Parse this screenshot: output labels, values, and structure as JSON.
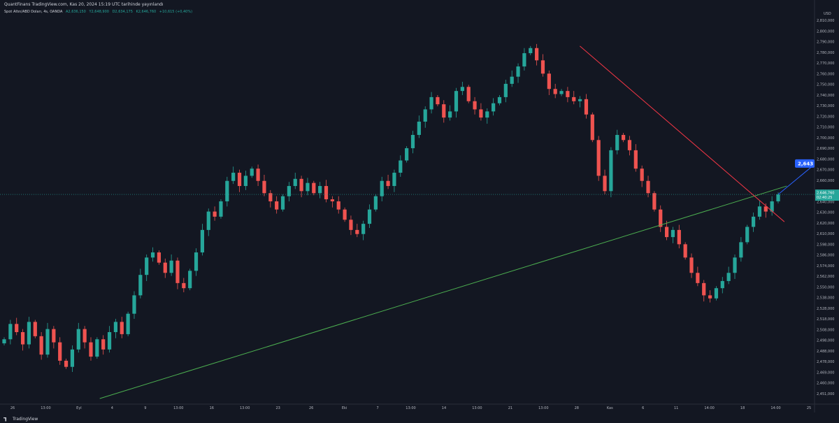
{
  "header": {
    "publisher": "QuantFinans TradingView.com, Kas 20, 2024 15:19 UTC tarihinde yayınlandı"
  },
  "legend": {
    "symbol": "Spot Altın/ABD Doları, 4s, OANDA",
    "open": "A2,636,150",
    "high": "Y2,648,900",
    "low": "D2,634,175",
    "close": "K2,646,760",
    "change": "+10,615 (+0,40%)"
  },
  "price_axis": {
    "currency": "USD"
  },
  "footer": {
    "logo_text": "TradingView"
  },
  "colors": {
    "bg": "#131722",
    "up": "#26a69a",
    "down": "#ef5350",
    "support": "#4caf50",
    "resistance": "#f23645",
    "projection": "#2962ff"
  },
  "chart_data": {
    "type": "candlestick",
    "title": "Spot Altın/ABD Doları, 4s, OANDA",
    "ylim": [
      2447,
      2822
    ],
    "y_ticks": [
      "2,810,000",
      "2,800,000",
      "2,790,000",
      "2,780,000",
      "2,770,000",
      "2,760,000",
      "2,750,000",
      "2,740,000",
      "2,730,000",
      "2,720,000",
      "2,710,000",
      "2,700,000",
      "2,690,000",
      "2,680,000",
      "2,670,000",
      "2,660,000",
      "2,650,000",
      "2,640,000",
      "2,630,000",
      "2,620,000",
      "2,610,000",
      "2,598,000",
      "2,586,000",
      "2,574,000",
      "2,562,000",
      "2,550,000",
      "2,538,000",
      "2,528,000",
      "2,518,000",
      "2,508,000",
      "2,498,000",
      "2,488,000",
      "2,478,000",
      "2,469,000",
      "2,460,000",
      "2,451,000"
    ],
    "x_ticks": [
      "26",
      "13:00",
      "Eyl",
      "4",
      "9",
      "13:00",
      "16",
      "13:00",
      "23",
      "26",
      "Eki",
      "7",
      "13:00",
      "14",
      "13:00",
      "21",
      "13:00",
      "28",
      "Kas",
      "6",
      "11",
      "14:00",
      "18",
      "14:00",
      "25"
    ],
    "close_path": [
      2505,
      2520,
      2512,
      2500,
      2522,
      2508,
      2490,
      2515,
      2502,
      2484,
      2478,
      2495,
      2515,
      2502,
      2488,
      2505,
      2495,
      2512,
      2522,
      2510,
      2530,
      2548,
      2568,
      2585,
      2590,
      2580,
      2570,
      2582,
      2560,
      2555,
      2572,
      2590,
      2612,
      2630,
      2625,
      2640,
      2660,
      2668,
      2655,
      2665,
      2672,
      2660,
      2648,
      2640,
      2632,
      2645,
      2655,
      2662,
      2650,
      2658,
      2648,
      2655,
      2642,
      2640,
      2632,
      2622,
      2612,
      2608,
      2618,
      2632,
      2645,
      2660,
      2655,
      2668,
      2680,
      2692,
      2705,
      2718,
      2730,
      2742,
      2735,
      2722,
      2728,
      2748,
      2752,
      2738,
      2730,
      2722,
      2728,
      2736,
      2742,
      2755,
      2762,
      2772,
      2785,
      2790,
      2778,
      2765,
      2750,
      2745,
      2748,
      2742,
      2738,
      2740,
      2725,
      2700,
      2665,
      2650,
      2690,
      2705,
      2700,
      2690,
      2672,
      2660,
      2648,
      2632,
      2615,
      2605,
      2612,
      2598,
      2585,
      2570,
      2560,
      2548,
      2545,
      2555,
      2562,
      2570,
      2585,
      2600,
      2615,
      2625,
      2635,
      2630,
      2640,
      2646.76
    ],
    "last_price": "2,646,760",
    "countdown": "02:40:25",
    "projection_label": "2,643",
    "trendlines": [
      {
        "name": "support",
        "from": [
          0.12,
          2447
        ],
        "to": [
          0.97,
          2655
        ]
      },
      {
        "name": "resistance",
        "from": [
          0.714,
          2792
        ],
        "to": [
          0.967,
          2620
        ]
      }
    ]
  }
}
